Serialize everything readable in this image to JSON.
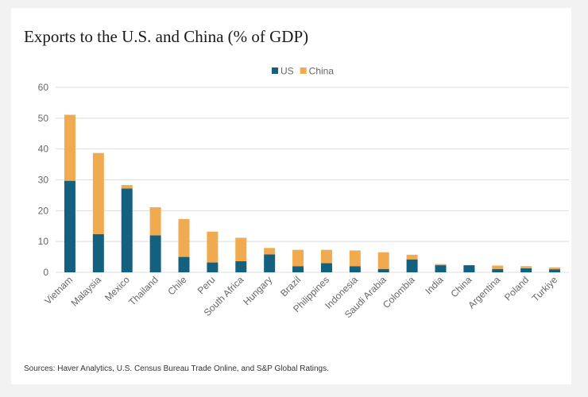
{
  "source": "Sources: Haver Analytics, U.S. Census Bureau Trade Online, and S&P Global Ratings.",
  "chart_data": {
    "type": "bar",
    "stacked": true,
    "title": "Exports to the U.S. and China (% of GDP)",
    "xlabel": "",
    "ylabel": "",
    "ylim": [
      0,
      60
    ],
    "yticks": [
      0,
      10,
      20,
      30,
      40,
      50,
      60
    ],
    "grid": true,
    "legend_position": "top-center",
    "categories": [
      "Vietnam",
      "Malaysia",
      "Mexico",
      "Thailand",
      "Chile",
      "Peru",
      "South Africa",
      "Hungary",
      "Brazil",
      "Philippines",
      "Indonesia",
      "Saudi Arabia",
      "Colombia",
      "India",
      "China",
      "Argentina",
      "Poland",
      "Turkiye"
    ],
    "series": [
      {
        "name": "US",
        "color": "#14607f",
        "values": [
          29.7,
          12.4,
          27.2,
          12.0,
          5.0,
          3.2,
          3.6,
          5.8,
          2.0,
          3.0,
          2.0,
          1.1,
          4.2,
          2.3,
          2.3,
          1.1,
          1.3,
          1.0
        ]
      },
      {
        "name": "China",
        "color": "#f0aa50",
        "values": [
          21.4,
          26.3,
          1.1,
          9.1,
          12.3,
          10.0,
          7.6,
          2.1,
          5.3,
          4.3,
          5.1,
          5.4,
          1.5,
          0.4,
          0.0,
          1.1,
          0.7,
          0.6
        ]
      }
    ]
  }
}
